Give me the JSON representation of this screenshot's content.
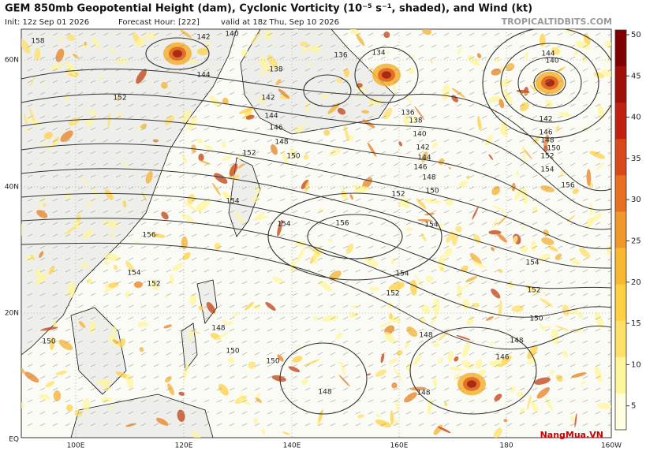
{
  "header": {
    "title": "GEM 850mb Geopotential Height (dam), Cyclonic Vorticity (10⁻⁵ s⁻¹, shaded), and Wind (kt)",
    "init": "Init: 12z Sep 01 2026",
    "forecast_hour": "Forecast Hour: [222]",
    "valid": "valid at 18z Thu, Sep 10 2026",
    "brand": "TROPICALTIDBITS.COM"
  },
  "map": {
    "lat_labels": [
      "60N",
      "40N",
      "20N",
      "EQ"
    ],
    "lon_labels": [
      "100E",
      "120E",
      "140E",
      "160E",
      "180",
      "160W"
    ],
    "contour_labels": [
      "142",
      "140",
      "158",
      "144",
      "136",
      "138",
      "134",
      "152",
      "142",
      "144",
      "146",
      "148",
      "150",
      "152",
      "136",
      "138",
      "140",
      "142",
      "144",
      "146",
      "148",
      "150",
      "152",
      "154",
      "154",
      "156",
      "154",
      "156",
      "154",
      "152",
      "154",
      "154",
      "152",
      "152",
      "150",
      "148",
      "150",
      "150",
      "150",
      "148",
      "146",
      "148",
      "148",
      "144",
      "140",
      "142",
      "146",
      "148",
      "150",
      "152",
      "154",
      "156",
      "148"
    ]
  },
  "colorbar": {
    "ticks": [
      5,
      10,
      15,
      20,
      25,
      30,
      35,
      40,
      45,
      50
    ]
  },
  "watermark": "NangMua.VN"
}
